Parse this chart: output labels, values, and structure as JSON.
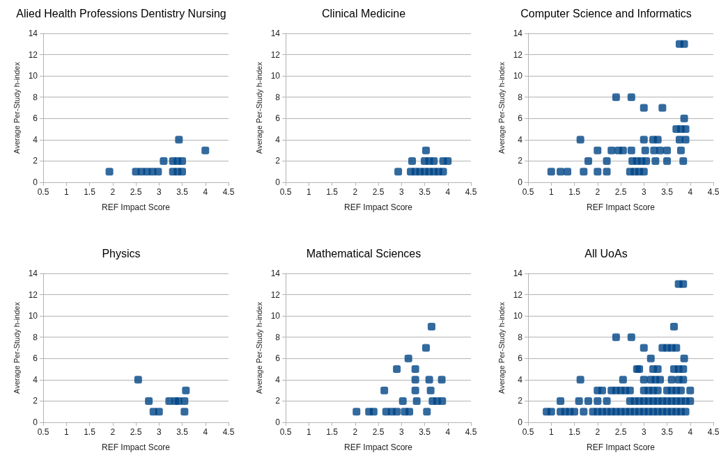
{
  "chart_data": [
    {
      "type": "scatter",
      "title": "Alied Health Professions Dentistry Nursing",
      "xlabel": "REF Impact Score",
      "ylabel": "Average Per-Study h-index",
      "color": "#004586",
      "marker": "square",
      "grid": "y",
      "xlim": [
        0.5,
        4.5
      ],
      "xticks": [
        0.5,
        1,
        1.5,
        2,
        2.5,
        3,
        3.5,
        4,
        4.5
      ],
      "ylim": [
        0,
        14
      ],
      "yticks": [
        0,
        2,
        4,
        6,
        8,
        10,
        12,
        14
      ],
      "x": [
        1.93,
        2.5,
        2.62,
        2.74,
        2.86,
        2.98,
        3.1,
        3.3,
        3.4,
        3.5,
        3.3,
        3.4,
        3.5,
        3.43,
        4.0
      ],
      "values": [
        1,
        1,
        1,
        1,
        1,
        1,
        2,
        2,
        2,
        2,
        1,
        1,
        1,
        4,
        3
      ]
    },
    {
      "type": "scatter",
      "title": "Clinical Medicine",
      "xlabel": "REF Impact Score",
      "ylabel": "Average Per-Study h-index",
      "color": "#004586",
      "marker": "square",
      "grid": "y",
      "xlim": [
        0.5,
        4.5
      ],
      "xticks": [
        0.5,
        1,
        1.5,
        2,
        2.5,
        3,
        3.5,
        4,
        4.5
      ],
      "ylim": [
        0,
        14
      ],
      "yticks": [
        0,
        2,
        4,
        6,
        8,
        10,
        12,
        14
      ],
      "x": [
        2.93,
        3.2,
        3.3,
        3.4,
        3.5,
        3.6,
        3.7,
        3.8,
        3.9,
        3.23,
        3.5,
        3.6,
        3.7,
        3.9,
        4.0,
        3.53
      ],
      "values": [
        1,
        1,
        1,
        1,
        1,
        1,
        1,
        1,
        1,
        2,
        2,
        2,
        2,
        2,
        2,
        3
      ]
    },
    {
      "type": "scatter",
      "title": "Computer Science and Informatics",
      "xlabel": "REF Impact Score",
      "ylabel": "Average Per-Study h-index",
      "color": "#004586",
      "marker": "square",
      "grid": "y",
      "xlim": [
        0.5,
        4.5
      ],
      "xticks": [
        0.5,
        1,
        1.5,
        2,
        2.5,
        3,
        3.5,
        4,
        4.5
      ],
      "ylim": [
        0,
        14
      ],
      "yticks": [
        0,
        2,
        4,
        6,
        8,
        10,
        12,
        14
      ],
      "x": [
        1.0,
        1.2,
        1.35,
        1.7,
        2.0,
        2.2,
        2.7,
        2.8,
        2.9,
        3.0,
        1.8,
        2.2,
        2.75,
        2.85,
        2.95,
        3.05,
        3.25,
        3.5,
        3.85,
        2.0,
        2.3,
        2.45,
        2.55,
        2.73,
        3.03,
        3.22,
        3.35,
        3.5,
        3.8,
        1.63,
        3.0,
        3.2,
        3.3,
        3.77,
        3.9,
        3.7,
        3.8,
        3.9,
        3.87,
        3.0,
        3.4,
        2.4,
        2.73,
        3.77,
        3.87
      ],
      "values": [
        1,
        1,
        1,
        1,
        1,
        1,
        1,
        1,
        1,
        1,
        2,
        2,
        2,
        2,
        2,
        2,
        2,
        2,
        2,
        3,
        3,
        3,
        3,
        3,
        3,
        3,
        3,
        3,
        3,
        4,
        4,
        4,
        4,
        4,
        4,
        5,
        5,
        5,
        6,
        7,
        7,
        8,
        8,
        13,
        13
      ]
    },
    {
      "type": "scatter",
      "title": "Physics",
      "xlabel": "REF Impact Score",
      "ylabel": "Average Per-Study h-index",
      "color": "#004586",
      "marker": "square",
      "grid": "y",
      "xlim": [
        0.5,
        4.5
      ],
      "xticks": [
        0.5,
        1,
        1.5,
        2,
        2.5,
        3,
        3.5,
        4,
        4.5
      ],
      "ylim": [
        0,
        14
      ],
      "yticks": [
        0,
        2,
        4,
        6,
        8,
        10,
        12,
        14
      ],
      "x": [
        2.55,
        2.78,
        2.88,
        3.0,
        3.22,
        3.35,
        3.42,
        3.55,
        3.55,
        3.58
      ],
      "values": [
        4,
        2,
        1,
        1,
        2,
        2,
        2,
        2,
        1,
        3
      ]
    },
    {
      "type": "scatter",
      "title": "Mathematical Sciences",
      "xlabel": "REF Impact Score",
      "ylabel": "Average Per-Study h-index",
      "color": "#004586",
      "marker": "square",
      "grid": "y",
      "xlim": [
        0.5,
        4.5
      ],
      "xticks": [
        0.5,
        1,
        1.5,
        2,
        2.5,
        3,
        3.5,
        4,
        4.5
      ],
      "ylim": [
        0,
        14
      ],
      "yticks": [
        0,
        2,
        4,
        6,
        8,
        10,
        12,
        14
      ],
      "x": [
        2.03,
        2.3,
        2.4,
        2.67,
        2.79,
        2.9,
        3.07,
        3.17,
        3.55,
        3.03,
        3.33,
        3.67,
        3.77,
        3.88,
        2.63,
        3.3,
        3.63,
        3.3,
        3.6,
        3.87,
        2.9,
        3.3,
        3.15,
        3.53,
        3.65
      ],
      "values": [
        1,
        1,
        1,
        1,
        1,
        1,
        1,
        1,
        1,
        2,
        2,
        2,
        2,
        2,
        3,
        3,
        3,
        4,
        4,
        4,
        5,
        5,
        6,
        7,
        9
      ]
    },
    {
      "type": "scatter",
      "title": "All UoAs",
      "xlabel": "REF Impact Score",
      "ylabel": "Average Per-Study h-index",
      "color": "#004586",
      "marker": "square",
      "grid": "y",
      "xlim": [
        0.5,
        4.5
      ],
      "xticks": [
        0.5,
        1,
        1.5,
        2,
        2.5,
        3,
        3.5,
        4,
        4.5
      ],
      "ylim": [
        0,
        14
      ],
      "yticks": [
        0,
        2,
        4,
        6,
        8,
        10,
        12,
        14
      ],
      "x": [
        0.9,
        1.0,
        1.2,
        1.3,
        1.4,
        1.5,
        1.7,
        1.9,
        2.0,
        2.1,
        2.2,
        2.3,
        2.4,
        2.5,
        2.6,
        2.7,
        2.8,
        2.9,
        3.0,
        3.1,
        3.2,
        3.3,
        3.4,
        3.5,
        3.6,
        3.7,
        3.8,
        3.9,
        1.2,
        1.6,
        1.8,
        2.0,
        2.2,
        2.7,
        2.8,
        2.9,
        3.0,
        3.1,
        3.2,
        3.3,
        3.4,
        3.5,
        3.6,
        3.7,
        3.8,
        3.9,
        4.0,
        2.0,
        2.1,
        2.3,
        2.4,
        2.5,
        2.6,
        2.7,
        3.0,
        3.1,
        3.2,
        3.3,
        3.5,
        3.6,
        3.7,
        3.8,
        4.0,
        1.63,
        2.55,
        3.0,
        3.15,
        3.25,
        3.35,
        3.6,
        3.75,
        3.85,
        2.85,
        2.9,
        3.2,
        3.3,
        3.65,
        3.75,
        3.85,
        3.15,
        3.87,
        3.0,
        3.4,
        3.5,
        3.6,
        3.7,
        2.4,
        2.73,
        3.65,
        3.75,
        3.85
      ],
      "values": [
        1,
        1,
        1,
        1,
        1,
        1,
        1,
        1,
        1,
        1,
        1,
        1,
        1,
        1,
        1,
        1,
        1,
        1,
        1,
        1,
        1,
        1,
        1,
        1,
        1,
        1,
        1,
        1,
        2,
        2,
        2,
        2,
        2,
        2,
        2,
        2,
        2,
        2,
        2,
        2,
        2,
        2,
        2,
        2,
        2,
        2,
        2,
        3,
        3,
        3,
        3,
        3,
        3,
        3,
        3,
        3,
        3,
        3,
        3,
        3,
        3,
        3,
        3,
        4,
        4,
        4,
        4,
        4,
        4,
        4,
        4,
        4,
        5,
        5,
        5,
        5,
        5,
        5,
        5,
        6,
        6,
        7,
        7,
        7,
        7,
        7,
        8,
        8,
        9,
        13,
        13
      ]
    }
  ]
}
